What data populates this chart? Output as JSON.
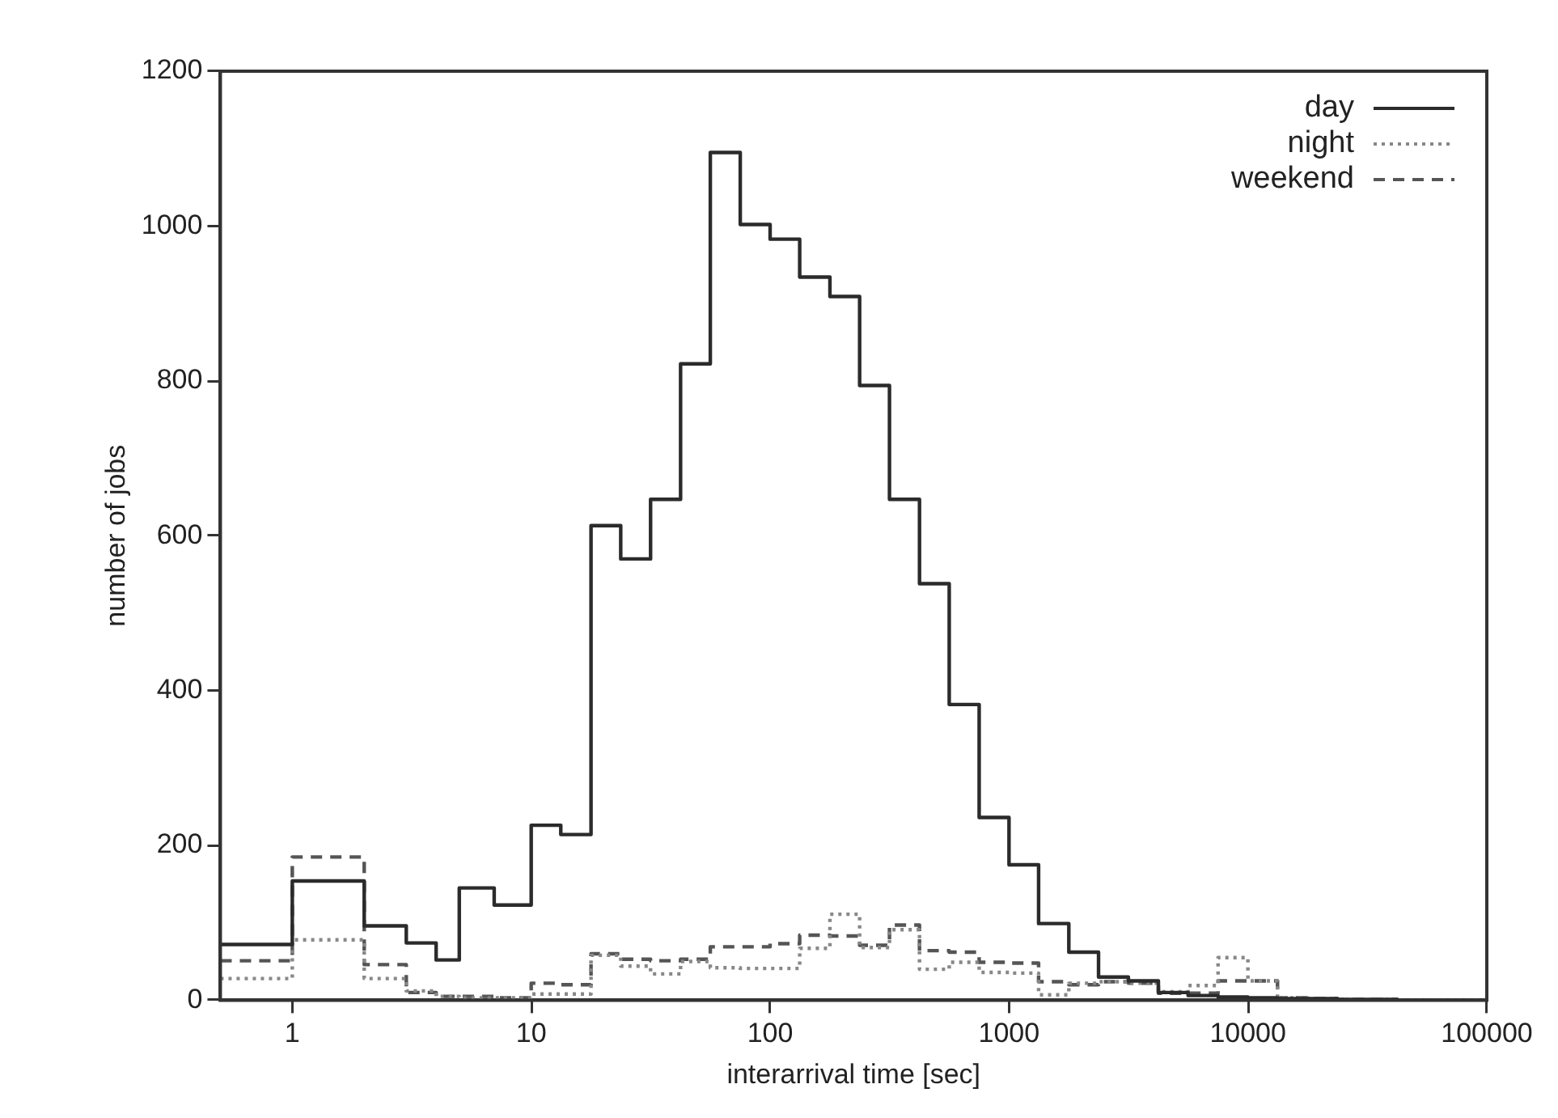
{
  "chart_data": {
    "type": "histogram",
    "xlabel": "interarrival time [sec]",
    "ylabel": "number of jobs",
    "bins": [
      0.5,
      1,
      2,
      3,
      4,
      5,
      7,
      10,
      13.3,
      17.8,
      23.7,
      31.6,
      42.2,
      56.2,
      75,
      100,
      133,
      178,
      237,
      316,
      422,
      562,
      750,
      1000,
      1330,
      1780,
      2370,
      3160,
      4220,
      5620,
      7500,
      10000,
      13300,
      17800,
      23700,
      31600,
      42200,
      56200,
      75000,
      100000
    ],
    "series": [
      {
        "name": "day",
        "color": "#2b2b2b",
        "line_style": "solid",
        "values": [
          72,
          154,
          96,
          74,
          52,
          145,
          123,
          226,
          214,
          613,
          570,
          647,
          822,
          1095,
          1002,
          983,
          934,
          909,
          794,
          647,
          538,
          382,
          236,
          175,
          99,
          62,
          30,
          25,
          10,
          6,
          4,
          3,
          2,
          2,
          1,
          1,
          0,
          0,
          0
        ]
      },
      {
        "name": "night",
        "color": "#888888",
        "line_style": "dotted",
        "values": [
          28,
          78,
          28,
          12,
          5,
          3,
          3,
          8,
          8,
          58,
          44,
          34,
          50,
          42,
          41,
          41,
          67,
          111,
          68,
          91,
          40,
          49,
          36,
          35,
          7,
          22,
          24,
          22,
          11,
          19,
          55,
          25,
          3,
          2,
          1,
          1,
          0,
          0,
          0
        ]
      },
      {
        "name": "weekend",
        "color": "#555555",
        "line_style": "dashed",
        "values": [
          51,
          185,
          46,
          10,
          5,
          5,
          3,
          22,
          20,
          60,
          53,
          51,
          53,
          69,
          69,
          73,
          84,
          83,
          71,
          97,
          64,
          62,
          49,
          48,
          24,
          20,
          24,
          22,
          9,
          9,
          25,
          25,
          3,
          2,
          1,
          1,
          0,
          0,
          0
        ]
      }
    ],
    "xlim": [
      0.5,
      100000
    ],
    "xticks": [
      1,
      10,
      100,
      1000,
      10000,
      100000
    ],
    "ylim": [
      0,
      1200
    ],
    "yticks": [
      0,
      200,
      400,
      600,
      800,
      1000,
      1200
    ],
    "log": "x",
    "grid": false,
    "legend": "top right"
  }
}
